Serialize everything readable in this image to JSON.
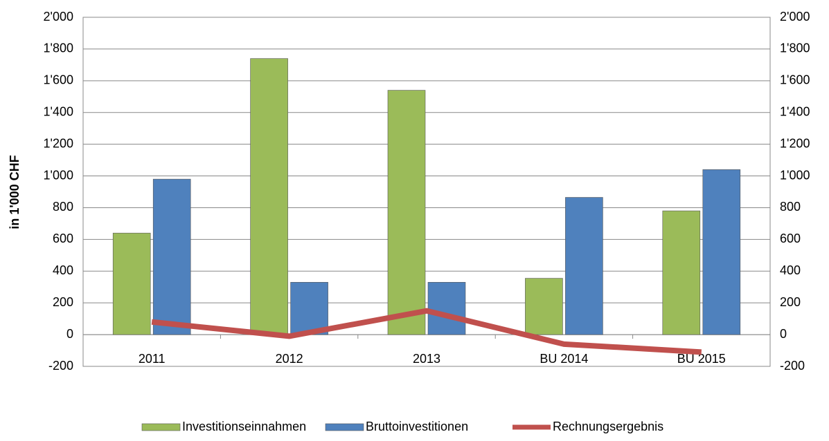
{
  "chart_data": {
    "type": "bar",
    "y_label": "in 1'000 CHF",
    "categories": [
      "2011",
      "2012",
      "2013",
      "BU 2014",
      "BU 2015"
    ],
    "series": [
      {
        "name": "Investitionseinnahmen",
        "color": "#9bbb59",
        "values": [
          640,
          1740,
          1540,
          355,
          780
        ]
      },
      {
        "name": "Bruttoinvestitionen",
        "color": "#4f81bd",
        "values": [
          980,
          330,
          330,
          865,
          1040
        ]
      },
      {
        "name": "Rechnungsergebnis",
        "color": "#c0504d",
        "type": "line",
        "values": [
          80,
          -10,
          150,
          -60,
          -110
        ]
      }
    ],
    "ylim": [
      -200,
      2000
    ],
    "yticks": [
      -200,
      0,
      200,
      400,
      600,
      800,
      {
        "value": 1000,
        "label": "1'000"
      },
      {
        "value": 1200,
        "label": "1'200"
      },
      {
        "value": 1400,
        "label": "1'400"
      },
      {
        "value": 1600,
        "label": "1'600"
      },
      {
        "value": 1800,
        "label": "1'800"
      },
      {
        "value": 2000,
        "label": "2'000"
      }
    ],
    "y2lim": [
      -200,
      2000
    ],
    "y2ticks": [
      -200,
      0,
      200,
      400,
      600,
      800,
      {
        "value": 1000,
        "label": "1'000"
      },
      {
        "value": 1200,
        "label": "1'200"
      },
      {
        "value": 1400,
        "label": "1'400"
      },
      {
        "value": 1600,
        "label": "1'600"
      },
      {
        "value": 1800,
        "label": "1'800"
      },
      {
        "value": 2000,
        "label": "2'000"
      }
    ],
    "grid": true,
    "legend": "bottom"
  }
}
